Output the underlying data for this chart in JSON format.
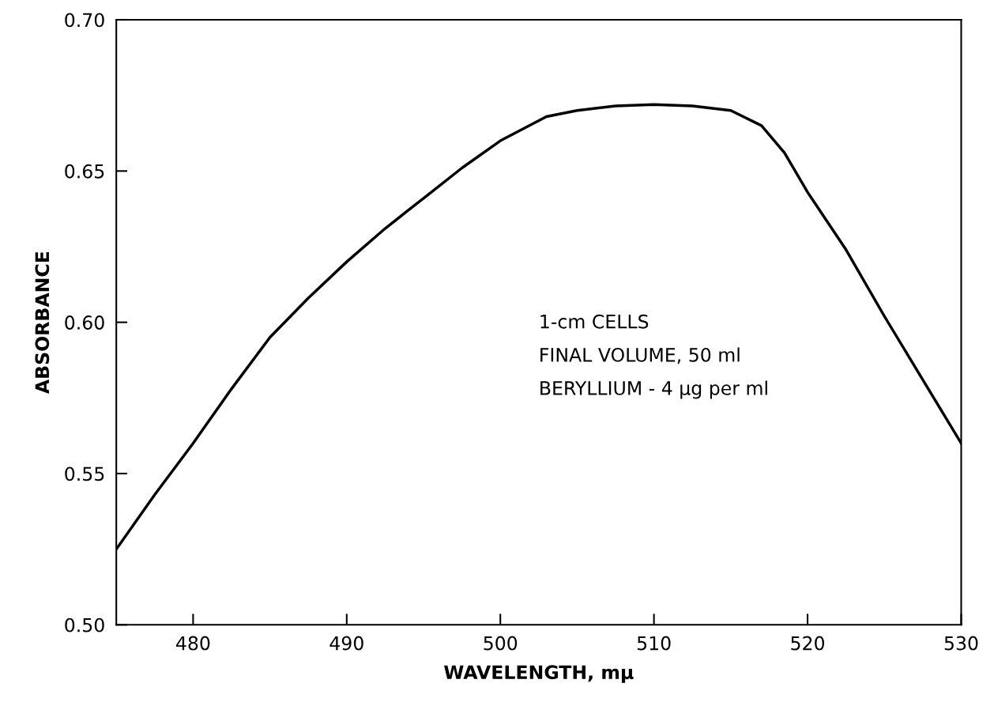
{
  "chart_data": {
    "type": "line",
    "xlabel": "WAVELENGTH, mμ",
    "ylabel": "ABSORBANCE",
    "x": [
      475,
      477.5,
      480,
      482.5,
      485,
      487.5,
      490,
      492.5,
      495,
      497.5,
      500,
      503,
      505,
      507.5,
      510,
      512.5,
      515,
      517,
      518.5,
      520,
      522.5,
      525,
      527.5,
      530
    ],
    "series": [
      {
        "color": "#000000",
        "values": [
          0.525,
          0.543,
          0.56,
          0.578,
          0.595,
          0.608,
          0.62,
          0.631,
          0.641,
          0.651,
          0.66,
          0.668,
          0.67,
          0.6715,
          0.672,
          0.6715,
          0.67,
          0.665,
          0.656,
          0.643,
          0.624,
          0.602,
          0.581,
          0.56
        ]
      }
    ],
    "xlim": [
      475,
      530
    ],
    "xticks": [
      480,
      490,
      500,
      510,
      520,
      530
    ],
    "ylim": [
      0.5,
      0.7
    ],
    "yticks": [
      {
        "value": 0.5,
        "label": "0.50"
      },
      0.55,
      {
        "value": 0.6,
        "label": "0.60"
      },
      0.65,
      {
        "value": 0.7,
        "label": "0.70"
      }
    ],
    "annotations": [
      "1-cm CELLS",
      "FINAL VOLUME, 50 ml",
      "BERYLLIUM - 4 μg per ml"
    ],
    "grid": false,
    "marker": "none",
    "line_style": "solid"
  }
}
